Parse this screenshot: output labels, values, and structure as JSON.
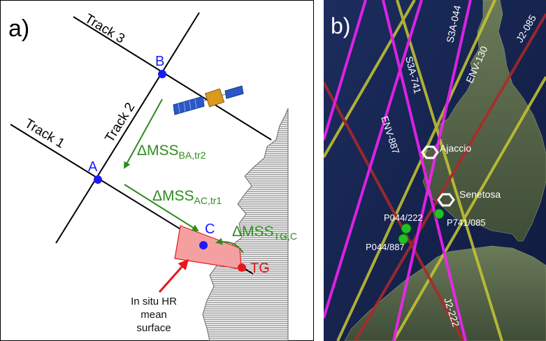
{
  "panel_a": {
    "label": "a)",
    "tracks": [
      "Track 1",
      "Track 2",
      "Track 3"
    ],
    "points": [
      "A",
      "B",
      "C"
    ],
    "tg_label": "TG",
    "annotations": {
      "dmss_ba": {
        "main": "ΔMSS",
        "sub": "BA,tr2"
      },
      "dmss_ac": {
        "main": "ΔMSS",
        "sub": "AC,tr1"
      },
      "dmss_tg": {
        "main": "ΔMSS",
        "sub": "TG,C"
      }
    },
    "insitu_lines": [
      "In situ HR",
      "mean",
      "surface"
    ],
    "colors": {
      "arrow_green": "#2e8b1e",
      "point_blue": "#1a1aff",
      "tg_red": "#e8161b",
      "surface_fill": "#f4a0a0"
    }
  },
  "panel_b": {
    "label": "b)",
    "track_labels": [
      "S3A-044",
      "ENV-130",
      "J2-085",
      "S3A-741",
      "ENV-887",
      "J2-222"
    ],
    "sites": [
      "Ajaccio",
      "Senetosa"
    ],
    "points": [
      "P044/222",
      "P741/085",
      "P044/887"
    ],
    "colors": {
      "s3a": "#ff20ff",
      "env": "#c8c832",
      "j2": "#b02828",
      "point_green": "#22c022"
    }
  }
}
